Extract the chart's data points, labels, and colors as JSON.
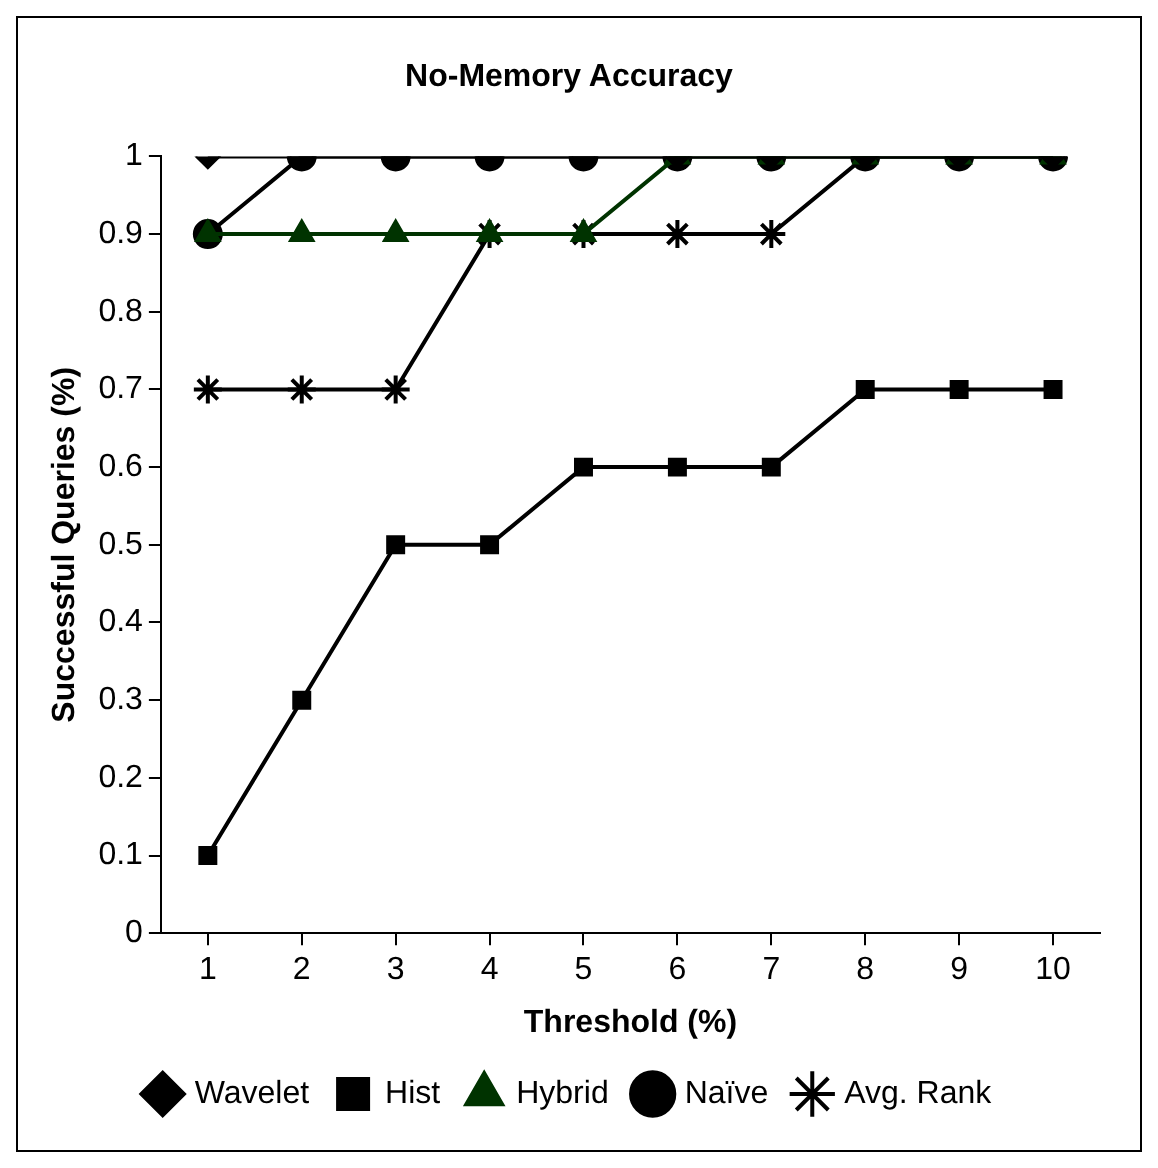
{
  "chart_data": {
    "type": "line",
    "title": "No-Memory Accuracy",
    "xlabel": "Threshold (%)",
    "ylabel": "Successful Queries (%)",
    "categories": [
      "1",
      "2",
      "3",
      "4",
      "5",
      "6",
      "7",
      "8",
      "9",
      "10"
    ],
    "ylim": [
      0,
      1
    ],
    "yticks": [
      0,
      0.1,
      0.2,
      0.3,
      0.4,
      0.5,
      0.6,
      0.7,
      0.8,
      0.9,
      1
    ],
    "grid": false,
    "legend": "bottom",
    "series": [
      {
        "name": "Wavelet",
        "color": "#000000",
        "marker": "diamond",
        "values": [
          1,
          1,
          1,
          1,
          1,
          1,
          1,
          1,
          1,
          1
        ]
      },
      {
        "name": "Hist",
        "color": "#000000",
        "marker": "square",
        "values": [
          0.1,
          0.3,
          0.5,
          0.5,
          0.6,
          0.6,
          0.6,
          0.7,
          0.7,
          0.7
        ]
      },
      {
        "name": "Hybrid",
        "color": "#003300",
        "marker": "triangle",
        "values": [
          0.9,
          0.9,
          0.9,
          0.9,
          0.9,
          1,
          1,
          1,
          1,
          1
        ]
      },
      {
        "name": "Naïve",
        "color": "#000000",
        "marker": "circle",
        "values": [
          0.9,
          1,
          1,
          1,
          1,
          1,
          1,
          1,
          1,
          1
        ]
      },
      {
        "name": "Avg. Rank",
        "color": "#000000",
        "marker": "cross",
        "values": [
          0.7,
          0.7,
          0.7,
          0.9,
          0.9,
          0.9,
          0.9,
          1,
          1,
          1
        ]
      }
    ]
  }
}
